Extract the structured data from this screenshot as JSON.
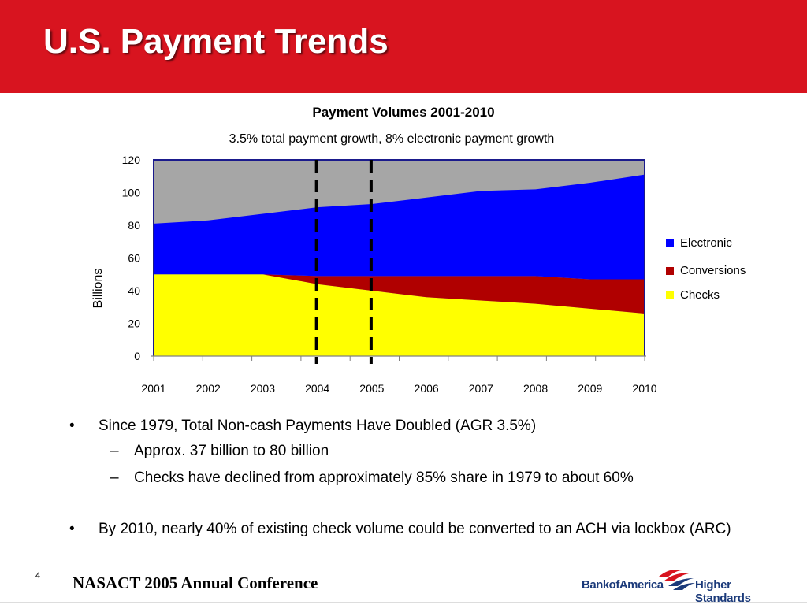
{
  "slide": {
    "title": "U.S. Payment Trends",
    "page_number": "4",
    "footer_text": "NASACT 2005 Annual Conference",
    "logo": {
      "brand": "Bank of America",
      "tagline": "Higher Standards",
      "left_text": "BankofAmerica"
    },
    "colors": {
      "header_red": "#d8141f",
      "logo_blue": "#1b3a7a"
    }
  },
  "chart_data": {
    "type": "area",
    "title": "Payment Volumes 2001-2010",
    "subtitle": "3.5% total payment growth, 8% electronic payment growth",
    "ylabel": "Billions",
    "xlabel": "",
    "x": [
      "2001",
      "2002",
      "2003",
      "2004",
      "2005",
      "2006",
      "2007",
      "2008",
      "2009",
      "2010"
    ],
    "ylim": [
      0,
      120
    ],
    "yticks": [
      "0",
      "20",
      "40",
      "60",
      "80",
      "100",
      "120"
    ],
    "background_color": "#a6a6a6",
    "series": [
      {
        "name": "Checks",
        "color": "#ffff00",
        "values": [
          50,
          50,
          50,
          44,
          40,
          36,
          34,
          32,
          29,
          26
        ]
      },
      {
        "name": "Conversions",
        "color": "#b00000",
        "values": [
          0,
          0,
          0,
          5,
          9,
          13,
          15,
          17,
          18,
          21
        ]
      },
      {
        "name": "Electronic",
        "color": "#0000ff",
        "values": [
          31,
          33,
          37,
          42,
          44,
          48,
          52,
          53,
          59,
          64
        ]
      }
    ],
    "totals": [
      81,
      83,
      87,
      91,
      93,
      97,
      101,
      102,
      106,
      111
    ],
    "legend": {
      "placement": "right",
      "order": [
        "Electronic",
        "Conversions",
        "Checks"
      ]
    },
    "annotations": [
      {
        "type": "dashed-vertical-line",
        "x": 2004
      },
      {
        "type": "dashed-vertical-line",
        "x": 2005
      }
    ],
    "grid": false
  },
  "bullets": [
    {
      "mark": "•",
      "text": "Since 1979, Total Non-cash Payments Have Doubled (AGR 3.5%)",
      "subs": [
        {
          "mark": "–",
          "text": "Approx. 37 billion to 80 billion"
        },
        {
          "mark": "–",
          "text": "Checks have declined from approximately 85% share in 1979 to about 60%"
        }
      ]
    },
    {
      "mark": "•",
      "text": "By 2010, nearly 40% of existing check volume could be converted to an ACH via lockbox (ARC)",
      "subs": []
    }
  ]
}
